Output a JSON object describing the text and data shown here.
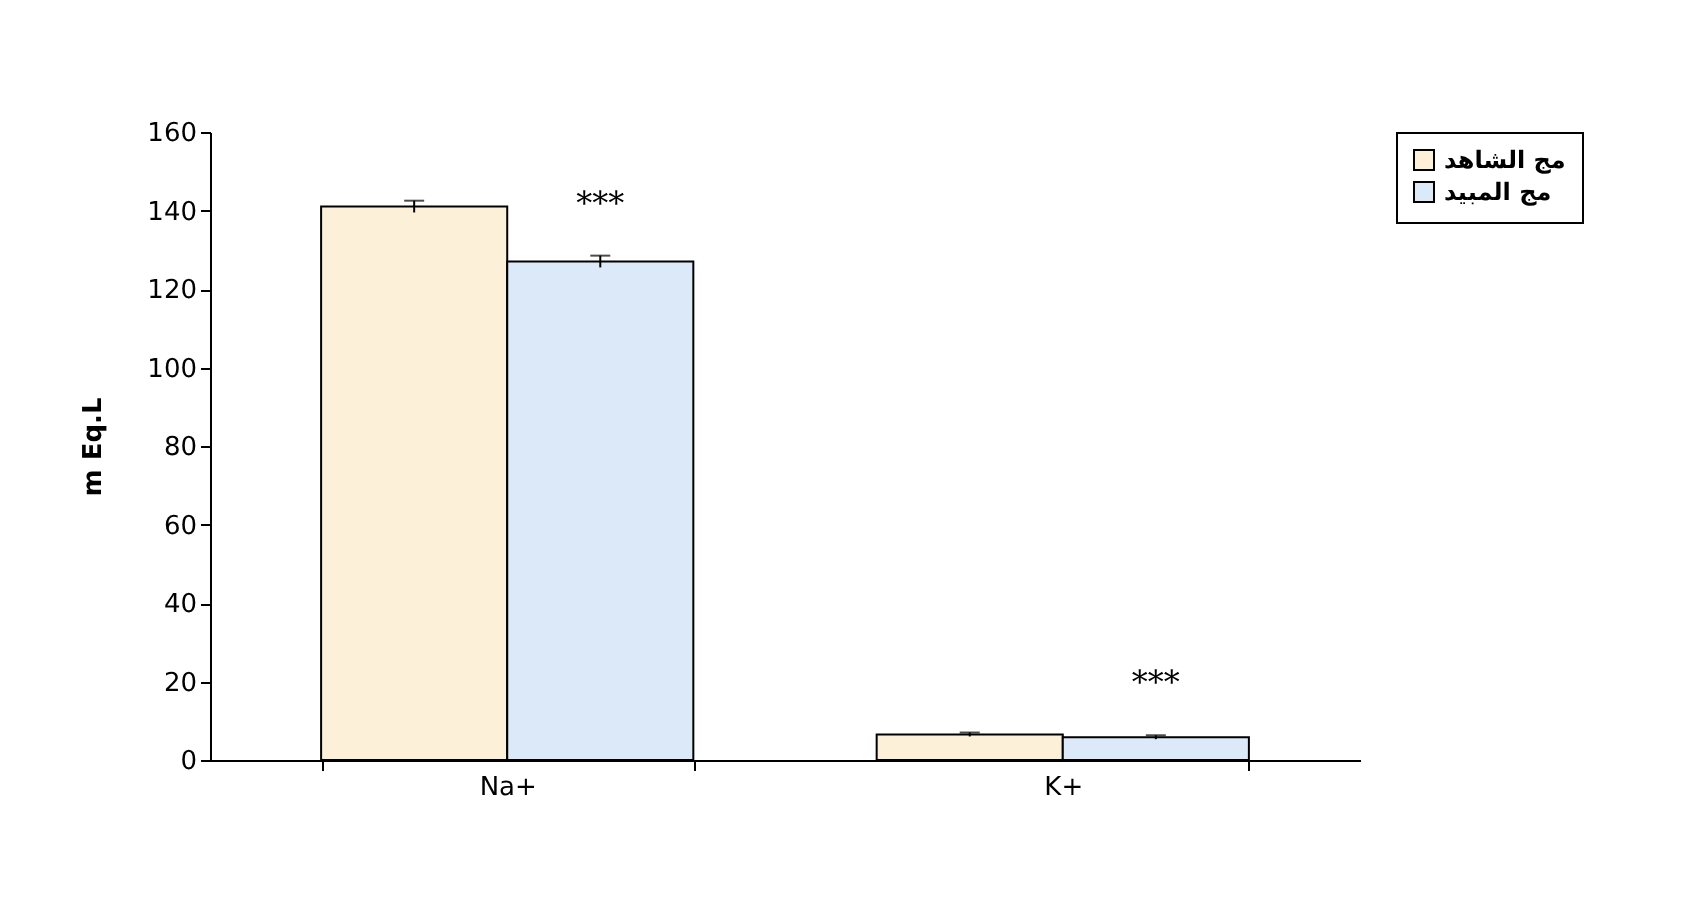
{
  "chart_data": {
    "type": "bar",
    "ylabel": "m Eq.L",
    "categories": [
      "Na+",
      "K+"
    ],
    "series": [
      {
        "name": "مج الشاهد",
        "color": "#fdf0d8",
        "values": [
          141,
          6.5
        ],
        "errors": [
          1.5,
          0.5
        ]
      },
      {
        "name": "مج المبيد",
        "color": "#dce9f8",
        "values": [
          127,
          5.8
        ],
        "errors": [
          1.5,
          0.5
        ]
      }
    ],
    "ylim": [
      0,
      160
    ],
    "yticks": [
      0,
      20,
      40,
      60,
      80,
      100,
      120,
      140,
      160
    ],
    "grid": false,
    "legend": "right",
    "annotations": [
      "***",
      "***"
    ]
  }
}
